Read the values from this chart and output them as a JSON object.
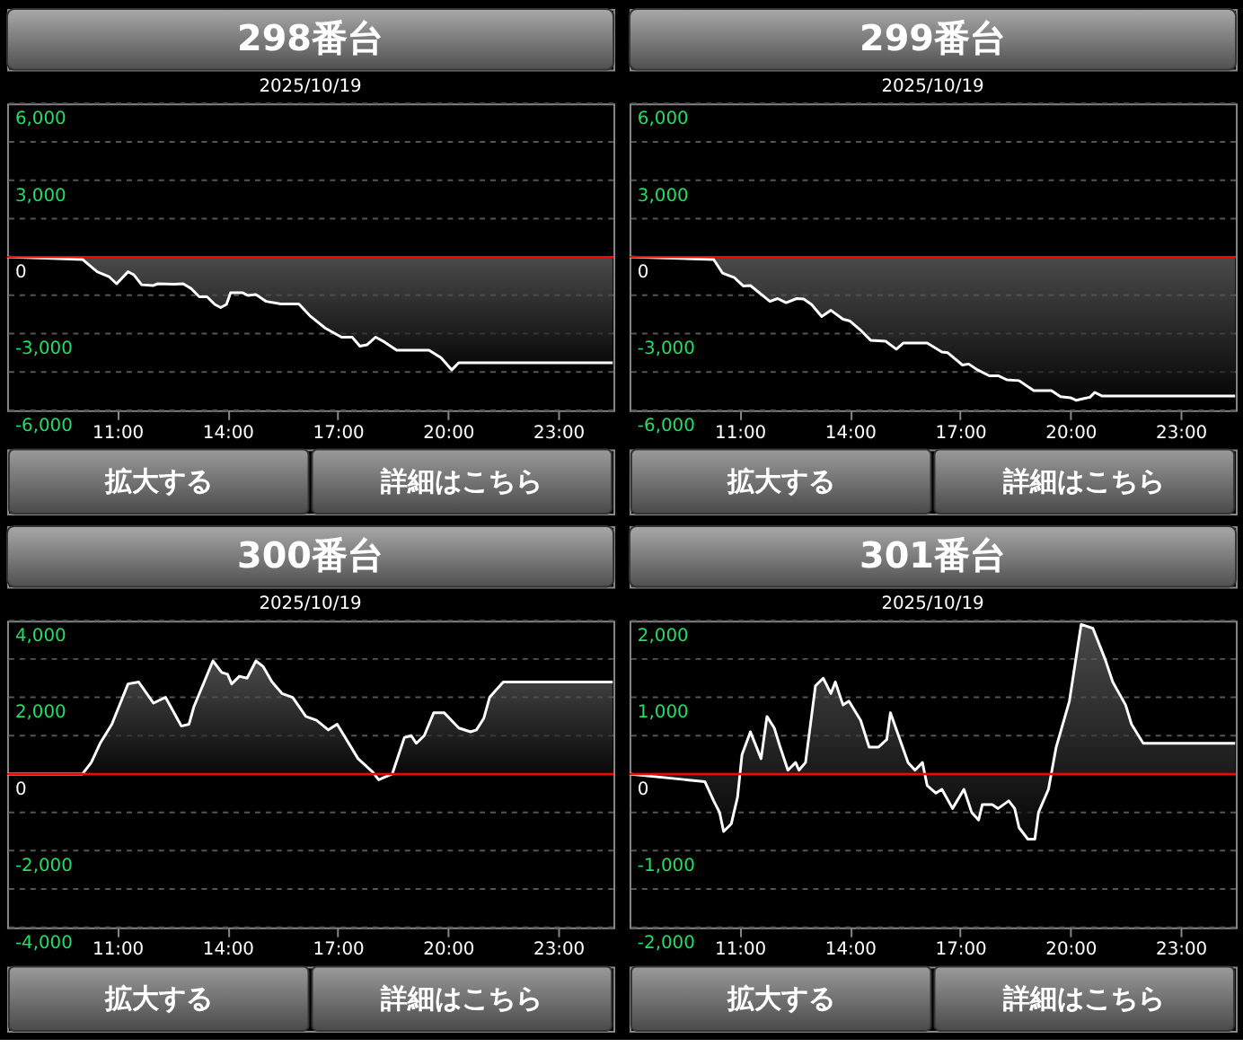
{
  "chart_data": [
    {
      "type": "area",
      "title": "298番台",
      "subtitle": "2025/10/19",
      "annotations": [
        "拡大する",
        "詳細はこちら"
      ],
      "grid": "y",
      "xlim": [
        8,
        24.5
      ],
      "xticks": [
        {
          "value": 11,
          "label": "11:00"
        },
        {
          "value": 14,
          "label": "14:00"
        },
        {
          "value": 17,
          "label": "17:00"
        },
        {
          "value": 20,
          "label": "20:00"
        },
        {
          "value": 23,
          "label": "23:00"
        }
      ],
      "ylim": [
        -6000,
        6000
      ],
      "yticks": [
        {
          "value": -6000,
          "label": "-6,000"
        },
        {
          "value": -4500,
          "label": null
        },
        {
          "value": -3000,
          "label": "-3,000"
        },
        {
          "value": -1500,
          "label": null
        },
        0,
        {
          "value": 1500,
          "label": null
        },
        {
          "value": 3000,
          "label": "3,000"
        },
        {
          "value": 4500,
          "label": null
        },
        {
          "value": 6000,
          "label": "6,000"
        }
      ],
      "ref_lines": [
        {
          "axis": "y",
          "value": 0,
          "color": "#ff0000"
        }
      ],
      "x": [
        8.0,
        10.05,
        10.45,
        10.77,
        10.98,
        11.29,
        11.45,
        11.66,
        11.98,
        12.1,
        12.55,
        12.79,
        13.0,
        13.23,
        13.44,
        13.65,
        13.81,
        13.97,
        14.08,
        14.4,
        14.56,
        14.77,
        15.05,
        15.45,
        15.94,
        16.26,
        16.66,
        17.1,
        17.39,
        17.6,
        17.79,
        18.03,
        18.27,
        18.6,
        19.48,
        19.81,
        20.1,
        20.29,
        24.48
      ],
      "series": [
        {
          "color": "#ffffff",
          "values": [
            0,
            -100,
            -580,
            -770,
            -1050,
            -580,
            -700,
            -1090,
            -1120,
            -1050,
            -1070,
            -1050,
            -1230,
            -1560,
            -1560,
            -1860,
            -1980,
            -1860,
            -1400,
            -1400,
            -1510,
            -1470,
            -1740,
            -1840,
            -1840,
            -2330,
            -2790,
            -3140,
            -3140,
            -3490,
            -3440,
            -3140,
            -3330,
            -3650,
            -3650,
            -3950,
            -4420,
            -4140,
            -4140
          ]
        }
      ]
    },
    {
      "type": "area",
      "title": "299番台",
      "subtitle": "2025/10/19",
      "annotations": [
        "拡大する",
        "詳細はこちら"
      ],
      "grid": "y",
      "xlim": [
        8,
        24.5
      ],
      "xticks": [
        {
          "value": 11,
          "label": "11:00"
        },
        {
          "value": 14,
          "label": "14:00"
        },
        {
          "value": 17,
          "label": "17:00"
        },
        {
          "value": 20,
          "label": "20:00"
        },
        {
          "value": 23,
          "label": "23:00"
        }
      ],
      "ylim": [
        -6000,
        6000
      ],
      "yticks": [
        {
          "value": -6000,
          "label": "-6,000"
        },
        {
          "value": -4500,
          "label": null
        },
        {
          "value": -3000,
          "label": "-3,000"
        },
        {
          "value": -1500,
          "label": null
        },
        0,
        {
          "value": 1500,
          "label": null
        },
        {
          "value": 3000,
          "label": "3,000"
        },
        {
          "value": 4500,
          "label": null
        },
        {
          "value": 6000,
          "label": "6,000"
        }
      ],
      "ref_lines": [
        {
          "axis": "y",
          "value": 0,
          "color": "#ff0000"
        }
      ],
      "x": [
        8.0,
        10.29,
        10.53,
        10.85,
        11.1,
        11.29,
        11.82,
        12.03,
        12.26,
        12.55,
        12.74,
        12.95,
        13.23,
        13.48,
        13.81,
        14.0,
        14.32,
        14.56,
        14.97,
        15.26,
        15.45,
        16.1,
        16.5,
        16.66,
        17.06,
        17.23,
        17.47,
        17.79,
        18.03,
        18.27,
        18.6,
        19.0,
        19.48,
        19.73,
        20.0,
        20.16,
        20.37,
        20.53,
        20.66,
        20.85,
        24.48
      ],
      "series": [
        {
          "color": "#ffffff",
          "values": [
            0,
            -100,
            -630,
            -810,
            -1140,
            -1120,
            -1740,
            -1630,
            -1790,
            -1630,
            -1650,
            -1860,
            -2330,
            -2090,
            -2440,
            -2510,
            -2910,
            -3260,
            -3300,
            -3610,
            -3370,
            -3370,
            -3720,
            -3750,
            -4230,
            -4190,
            -4420,
            -4650,
            -4650,
            -4810,
            -4840,
            -5230,
            -5230,
            -5470,
            -5510,
            -5610,
            -5540,
            -5490,
            -5300,
            -5440,
            -5440
          ]
        }
      ]
    },
    {
      "type": "area",
      "title": "300番台",
      "subtitle": "2025/10/19",
      "annotations": [
        "拡大する",
        "詳細はこちら"
      ],
      "grid": "y",
      "xlim": [
        8,
        24.5
      ],
      "xticks": [
        {
          "value": 11,
          "label": "11:00"
        },
        {
          "value": 14,
          "label": "14:00"
        },
        {
          "value": 17,
          "label": "17:00"
        },
        {
          "value": 20,
          "label": "20:00"
        },
        {
          "value": 23,
          "label": "23:00"
        }
      ],
      "ylim": [
        -4000,
        4000
      ],
      "yticks": [
        {
          "value": -4000,
          "label": "-4,000"
        },
        {
          "value": -3000,
          "label": null
        },
        {
          "value": -2000,
          "label": "-2,000"
        },
        {
          "value": -1000,
          "label": null
        },
        0,
        {
          "value": 1000,
          "label": null
        },
        {
          "value": 2000,
          "label": "2,000"
        },
        {
          "value": 3000,
          "label": null
        },
        {
          "value": 4000,
          "label": "4,000"
        }
      ],
      "ref_lines": [
        {
          "axis": "y",
          "value": 0,
          "color": "#ff0000"
        }
      ],
      "x": [
        8.0,
        10.05,
        10.29,
        10.53,
        10.85,
        11.29,
        11.58,
        11.98,
        12.31,
        12.74,
        12.95,
        13.08,
        13.6,
        13.84,
        14.0,
        14.11,
        14.32,
        14.53,
        14.77,
        14.97,
        15.21,
        15.48,
        15.77,
        16.13,
        16.42,
        16.74,
        16.98,
        17.55,
        17.95,
        18.11,
        18.48,
        18.81,
        19.0,
        19.13,
        19.35,
        19.61,
        19.89,
        20.29,
        20.61,
        20.77,
        20.97,
        21.13,
        21.5,
        24.48
      ],
      "series": [
        {
          "color": "#ffffff",
          "values": [
            0,
            0,
            300,
            800,
            1300,
            2350,
            2400,
            1850,
            2000,
            1250,
            1300,
            1750,
            2950,
            2650,
            2600,
            2350,
            2550,
            2500,
            2950,
            2800,
            2400,
            2100,
            2000,
            1500,
            1400,
            1150,
            1300,
            400,
            50,
            -150,
            0,
            950,
            1000,
            800,
            1000,
            1600,
            1600,
            1200,
            1100,
            1150,
            1450,
            2000,
            2400,
            2400
          ]
        }
      ]
    },
    {
      "type": "area",
      "title": "301番台",
      "subtitle": "2025/10/19",
      "annotations": [
        "拡大する",
        "詳細はこちら"
      ],
      "grid": "y",
      "xlim": [
        8,
        24.5
      ],
      "xticks": [
        {
          "value": 11,
          "label": "11:00"
        },
        {
          "value": 14,
          "label": "14:00"
        },
        {
          "value": 17,
          "label": "17:00"
        },
        {
          "value": 20,
          "label": "20:00"
        },
        {
          "value": 23,
          "label": "23:00"
        }
      ],
      "ylim": [
        -2000,
        2000
      ],
      "yticks": [
        {
          "value": -2000,
          "label": "-2,000"
        },
        {
          "value": -1500,
          "label": null
        },
        {
          "value": -1000,
          "label": "-1,000"
        },
        {
          "value": -500,
          "label": null
        },
        0,
        {
          "value": 500,
          "label": null
        },
        {
          "value": 1000,
          "label": "1,000"
        },
        {
          "value": 1500,
          "label": null
        },
        {
          "value": 2000,
          "label": "2,000"
        }
      ],
      "ref_lines": [
        {
          "axis": "y",
          "value": 0,
          "color": "#ff0000"
        }
      ],
      "x": [
        8.0,
        10.05,
        10.29,
        10.45,
        10.56,
        10.77,
        10.94,
        11.06,
        11.29,
        11.58,
        11.74,
        11.94,
        12.1,
        12.31,
        12.52,
        12.61,
        12.79,
        13.06,
        13.27,
        13.48,
        13.6,
        13.81,
        13.97,
        14.29,
        14.52,
        14.77,
        15.0,
        15.1,
        15.32,
        15.58,
        15.77,
        15.97,
        16.1,
        16.34,
        16.5,
        16.79,
        17.1,
        17.31,
        17.5,
        17.6,
        17.87,
        18.03,
        18.32,
        18.48,
        18.6,
        18.84,
        19.03,
        19.13,
        19.4,
        19.61,
        19.97,
        20.29,
        20.61,
        20.94,
        21.15,
        21.5,
        21.66,
        21.98,
        24.48
      ],
      "series": [
        {
          "color": "#ffffff",
          "values": [
            0,
            -100,
            -350,
            -500,
            -750,
            -650,
            -300,
            250,
            550,
            200,
            750,
            600,
            350,
            50,
            150,
            50,
            150,
            1150,
            1250,
            1050,
            1200,
            900,
            950,
            700,
            350,
            350,
            450,
            800,
            500,
            150,
            50,
            150,
            -150,
            -250,
            -200,
            -450,
            -200,
            -500,
            -600,
            -400,
            -400,
            -450,
            -350,
            -450,
            -700,
            -850,
            -850,
            -500,
            -200,
            350,
            950,
            1950,
            1900,
            1500,
            1200,
            900,
            650,
            400,
            400
          ]
        }
      ]
    }
  ]
}
